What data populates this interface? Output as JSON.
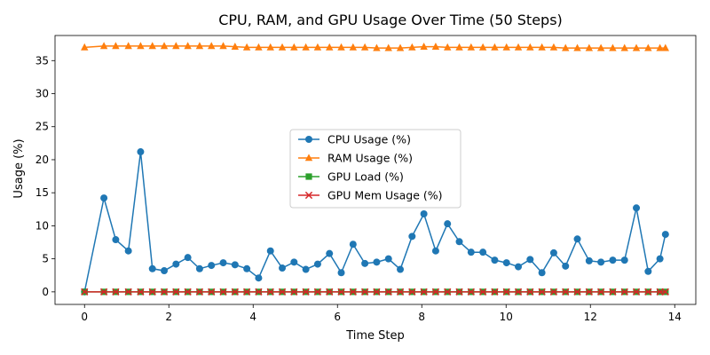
{
  "chart_data": {
    "type": "line",
    "title": "CPU, RAM, and GPU Usage Over Time (50 Steps)",
    "xlabel": "Time Step",
    "ylabel": "Usage (%)",
    "xlim": [
      -0.7,
      14.5
    ],
    "ylim": [
      -1.9,
      38.8
    ],
    "xticks": [
      0,
      2,
      4,
      6,
      8,
      10,
      12,
      14
    ],
    "yticks": [
      0,
      5,
      10,
      15,
      20,
      25,
      30,
      35
    ],
    "grid": false,
    "legend_position": "center",
    "x": [
      0,
      0.46,
      0.74,
      1.04,
      1.33,
      1.61,
      1.89,
      2.17,
      2.45,
      2.73,
      3.01,
      3.29,
      3.57,
      3.85,
      4.13,
      4.41,
      4.69,
      4.97,
      5.25,
      5.53,
      5.81,
      6.09,
      6.37,
      6.65,
      6.93,
      7.21,
      7.49,
      7.77,
      8.05,
      8.33,
      8.61,
      8.89,
      9.17,
      9.45,
      9.73,
      10.01,
      10.29,
      10.57,
      10.85,
      11.13,
      11.41,
      11.69,
      11.97,
      12.25,
      12.53,
      12.81,
      13.09,
      13.37,
      13.65,
      13.78
    ],
    "series": [
      {
        "name": "CPU Usage (%)",
        "color": "#1f77b4",
        "marker": "circle",
        "values": [
          0,
          14.2,
          7.9,
          6.2,
          21.2,
          3.5,
          3.2,
          4.2,
          5.2,
          3.5,
          4.0,
          4.4,
          4.1,
          3.5,
          2.1,
          6.2,
          3.6,
          4.5,
          3.4,
          4.2,
          5.8,
          2.9,
          7.2,
          4.3,
          4.5,
          5.0,
          3.4,
          8.4,
          11.8,
          6.2,
          10.3,
          7.6,
          6.0,
          6.0,
          4.8,
          4.4,
          3.8,
          4.9,
          2.9,
          5.9,
          3.9,
          8.0,
          4.7,
          4.5,
          4.8,
          4.8,
          12.7,
          3.1,
          5.0,
          8.7
        ]
      },
      {
        "name": "RAM Usage (%)",
        "color": "#ff7f0e",
        "marker": "triangle",
        "values": [
          37.0,
          37.2,
          37.2,
          37.2,
          37.2,
          37.2,
          37.2,
          37.2,
          37.2,
          37.2,
          37.2,
          37.2,
          37.1,
          37.0,
          37.0,
          37.0,
          37.0,
          37.0,
          37.0,
          37.0,
          37.0,
          37.0,
          37.0,
          37.0,
          36.9,
          36.9,
          36.9,
          37.0,
          37.1,
          37.1,
          37.0,
          37.0,
          37.0,
          37.0,
          37.0,
          37.0,
          37.0,
          37.0,
          37.0,
          37.0,
          36.9,
          36.9,
          36.9,
          36.9,
          36.9,
          36.9,
          36.9,
          36.9,
          36.9,
          36.9
        ]
      },
      {
        "name": "GPU Load (%)",
        "color": "#2ca02c",
        "marker": "square",
        "values": [
          0,
          0,
          0,
          0,
          0,
          0,
          0,
          0,
          0,
          0,
          0,
          0,
          0,
          0,
          0,
          0,
          0,
          0,
          0,
          0,
          0,
          0,
          0,
          0,
          0,
          0,
          0,
          0,
          0,
          0,
          0,
          0,
          0,
          0,
          0,
          0,
          0,
          0,
          0,
          0,
          0,
          0,
          0,
          0,
          0,
          0,
          0,
          0,
          0,
          0
        ]
      },
      {
        "name": "GPU Mem Usage (%)",
        "color": "#d62728",
        "marker": "x",
        "values": [
          0,
          0,
          0,
          0,
          0,
          0,
          0,
          0,
          0,
          0,
          0,
          0,
          0,
          0,
          0,
          0,
          0,
          0,
          0,
          0,
          0,
          0,
          0,
          0,
          0,
          0,
          0,
          0,
          0,
          0,
          0,
          0,
          0,
          0,
          0,
          0,
          0,
          0,
          0,
          0,
          0,
          0,
          0,
          0,
          0,
          0,
          0,
          0,
          0,
          0
        ]
      }
    ]
  }
}
